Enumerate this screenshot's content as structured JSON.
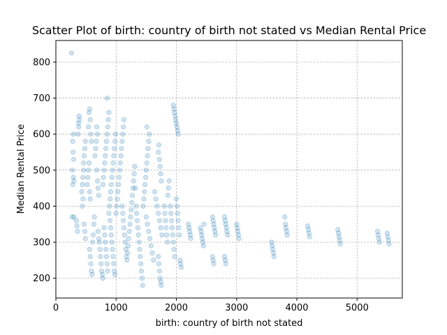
{
  "chart_data": {
    "type": "scatter",
    "title": "Scatter Plot of birth: country of birth not stated vs Median Rental Price",
    "xlabel": "birth: country of birth not stated",
    "ylabel": "Median Rental Price",
    "xlim": [
      0,
      5750
    ],
    "ylim": [
      145,
      860
    ],
    "xticks": [
      0,
      1000,
      2000,
      3000,
      4000,
      5000
    ],
    "yticks": [
      200,
      300,
      400,
      500,
      600,
      700,
      800
    ],
    "grid": true,
    "point_color": "#1f77b4",
    "point_alpha": 0.2,
    "points": [
      [
        260,
        825
      ],
      [
        270,
        370
      ],
      [
        300,
        370
      ],
      [
        290,
        600
      ],
      [
        280,
        580
      ],
      [
        285,
        550
      ],
      [
        295,
        530
      ],
      [
        275,
        500
      ],
      [
        290,
        480
      ],
      [
        300,
        470
      ],
      [
        280,
        460
      ],
      [
        340,
        360
      ],
      [
        350,
        345
      ],
      [
        360,
        330
      ],
      [
        370,
        600
      ],
      [
        380,
        620
      ],
      [
        390,
        640
      ],
      [
        385,
        650
      ],
      [
        375,
        630
      ],
      [
        430,
        440
      ],
      [
        440,
        460
      ],
      [
        450,
        480
      ],
      [
        460,
        520
      ],
      [
        470,
        540
      ],
      [
        480,
        560
      ],
      [
        490,
        580
      ],
      [
        460,
        500
      ],
      [
        450,
        420
      ],
      [
        440,
        400
      ],
      [
        470,
        350
      ],
      [
        480,
        330
      ],
      [
        490,
        310
      ],
      [
        520,
        460
      ],
      [
        530,
        480
      ],
      [
        540,
        500
      ],
      [
        550,
        520
      ],
      [
        560,
        440
      ],
      [
        570,
        420
      ],
      [
        540,
        620
      ],
      [
        550,
        660
      ],
      [
        560,
        670
      ],
      [
        570,
        640
      ],
      [
        580,
        600
      ],
      [
        590,
        580
      ],
      [
        560,
        280
      ],
      [
        570,
        260
      ],
      [
        580,
        240
      ],
      [
        590,
        220
      ],
      [
        600,
        210
      ],
      [
        610,
        300
      ],
      [
        620,
        320
      ],
      [
        630,
        350
      ],
      [
        640,
        370
      ],
      [
        650,
        540
      ],
      [
        660,
        560
      ],
      [
        670,
        580
      ],
      [
        680,
        500
      ],
      [
        690,
        470
      ],
      [
        700,
        450
      ],
      [
        710,
        430
      ],
      [
        680,
        620
      ],
      [
        690,
        600
      ],
      [
        700,
        330
      ],
      [
        710,
        310
      ],
      [
        720,
        300
      ],
      [
        730,
        280
      ],
      [
        740,
        260
      ],
      [
        750,
        240
      ],
      [
        760,
        220
      ],
      [
        770,
        210
      ],
      [
        780,
        200
      ],
      [
        780,
        460
      ],
      [
        790,
        480
      ],
      [
        800,
        500
      ],
      [
        810,
        520
      ],
      [
        820,
        540
      ],
      [
        830,
        560
      ],
      [
        840,
        580
      ],
      [
        850,
        600
      ],
      [
        860,
        620
      ],
      [
        870,
        640
      ],
      [
        880,
        660
      ],
      [
        850,
        700
      ],
      [
        800,
        340
      ],
      [
        810,
        320
      ],
      [
        820,
        300
      ],
      [
        830,
        280
      ],
      [
        840,
        260
      ],
      [
        850,
        240
      ],
      [
        860,
        220
      ],
      [
        880,
        380
      ],
      [
        890,
        400
      ],
      [
        900,
        420
      ],
      [
        910,
        440
      ],
      [
        920,
        460
      ],
      [
        930,
        480
      ],
      [
        940,
        500
      ],
      [
        950,
        520
      ],
      [
        960,
        540
      ],
      [
        970,
        560
      ],
      [
        980,
        580
      ],
      [
        990,
        600
      ],
      [
        900,
        360
      ],
      [
        910,
        340
      ],
      [
        920,
        320
      ],
      [
        930,
        300
      ],
      [
        940,
        280
      ],
      [
        950,
        260
      ],
      [
        960,
        240
      ],
      [
        970,
        220
      ],
      [
        980,
        210
      ],
      [
        1000,
        380
      ],
      [
        1010,
        400
      ],
      [
        1020,
        420
      ],
      [
        1030,
        440
      ],
      [
        1040,
        460
      ],
      [
        1050,
        480
      ],
      [
        1060,
        500
      ],
      [
        1070,
        520
      ],
      [
        1080,
        540
      ],
      [
        1090,
        560
      ],
      [
        1100,
        580
      ],
      [
        1110,
        600
      ],
      [
        1120,
        620
      ],
      [
        1130,
        640
      ],
      [
        1100,
        400
      ],
      [
        1110,
        380
      ],
      [
        1120,
        360
      ],
      [
        1130,
        340
      ],
      [
        1140,
        320
      ],
      [
        1150,
        300
      ],
      [
        1160,
        280
      ],
      [
        1170,
        260
      ],
      [
        1180,
        250
      ],
      [
        1190,
        270
      ],
      [
        1200,
        290
      ],
      [
        1210,
        310
      ],
      [
        1220,
        330
      ],
      [
        1230,
        350
      ],
      [
        1240,
        370
      ],
      [
        1250,
        390
      ],
      [
        1260,
        410
      ],
      [
        1270,
        430
      ],
      [
        1280,
        450
      ],
      [
        1290,
        470
      ],
      [
        1300,
        490
      ],
      [
        1310,
        510
      ],
      [
        1320,
        450
      ],
      [
        1330,
        400
      ],
      [
        1340,
        380
      ],
      [
        1350,
        360
      ],
      [
        1360,
        340
      ],
      [
        1370,
        320
      ],
      [
        1380,
        300
      ],
      [
        1390,
        280
      ],
      [
        1400,
        260
      ],
      [
        1410,
        240
      ],
      [
        1420,
        220
      ],
      [
        1430,
        200
      ],
      [
        1440,
        180
      ],
      [
        1450,
        400
      ],
      [
        1460,
        420
      ],
      [
        1470,
        440
      ],
      [
        1480,
        460
      ],
      [
        1490,
        480
      ],
      [
        1500,
        500
      ],
      [
        1510,
        520
      ],
      [
        1520,
        540
      ],
      [
        1530,
        560
      ],
      [
        1540,
        580
      ],
      [
        1550,
        600
      ],
      [
        1510,
        620
      ],
      [
        1500,
        370
      ],
      [
        1520,
        350
      ],
      [
        1540,
        330
      ],
      [
        1560,
        310
      ],
      [
        1580,
        290
      ],
      [
        1600,
        270
      ],
      [
        1620,
        250
      ],
      [
        1640,
        440
      ],
      [
        1660,
        420
      ],
      [
        1680,
        400
      ],
      [
        1700,
        380
      ],
      [
        1720,
        360
      ],
      [
        1740,
        340
      ],
      [
        1760,
        320
      ],
      [
        1700,
        550
      ],
      [
        1710,
        570
      ],
      [
        1720,
        530
      ],
      [
        1730,
        510
      ],
      [
        1740,
        490
      ],
      [
        1750,
        470
      ],
      [
        1700,
        260
      ],
      [
        1710,
        240
      ],
      [
        1720,
        220
      ],
      [
        1730,
        200
      ],
      [
        1740,
        190
      ],
      [
        1750,
        180
      ],
      [
        1800,
        400
      ],
      [
        1810,
        380
      ],
      [
        1820,
        360
      ],
      [
        1830,
        340
      ],
      [
        1840,
        320
      ],
      [
        1850,
        300
      ],
      [
        1860,
        430
      ],
      [
        1870,
        450
      ],
      [
        1880,
        470
      ],
      [
        1950,
        680
      ],
      [
        1960,
        670
      ],
      [
        1970,
        660
      ],
      [
        1980,
        650
      ],
      [
        1990,
        640
      ],
      [
        2000,
        630
      ],
      [
        2010,
        620
      ],
      [
        2020,
        610
      ],
      [
        2030,
        600
      ],
      [
        1900,
        400
      ],
      [
        1910,
        380
      ],
      [
        1920,
        360
      ],
      [
        1930,
        340
      ],
      [
        1940,
        320
      ],
      [
        1950,
        300
      ],
      [
        1960,
        280
      ],
      [
        1970,
        260
      ],
      [
        2000,
        420
      ],
      [
        2010,
        400
      ],
      [
        2020,
        380
      ],
      [
        2030,
        360
      ],
      [
        2040,
        340
      ],
      [
        2050,
        320
      ],
      [
        2060,
        250
      ],
      [
        2070,
        240
      ],
      [
        2080,
        230
      ],
      [
        2200,
        350
      ],
      [
        2210,
        340
      ],
      [
        2220,
        330
      ],
      [
        2230,
        320
      ],
      [
        2240,
        310
      ],
      [
        2400,
        340
      ],
      [
        2410,
        330
      ],
      [
        2420,
        320
      ],
      [
        2430,
        310
      ],
      [
        2440,
        300
      ],
      [
        2450,
        290
      ],
      [
        2460,
        350
      ],
      [
        2600,
        370
      ],
      [
        2610,
        360
      ],
      [
        2620,
        350
      ],
      [
        2630,
        340
      ],
      [
        2640,
        330
      ],
      [
        2650,
        320
      ],
      [
        2600,
        260
      ],
      [
        2610,
        250
      ],
      [
        2620,
        240
      ],
      [
        2800,
        370
      ],
      [
        2810,
        360
      ],
      [
        2820,
        350
      ],
      [
        2830,
        340
      ],
      [
        2840,
        330
      ],
      [
        2850,
        320
      ],
      [
        2800,
        260
      ],
      [
        2810,
        250
      ],
      [
        2820,
        240
      ],
      [
        3000,
        350
      ],
      [
        3010,
        340
      ],
      [
        3020,
        330
      ],
      [
        3030,
        320
      ],
      [
        3040,
        310
      ],
      [
        3580,
        300
      ],
      [
        3590,
        290
      ],
      [
        3600,
        280
      ],
      [
        3610,
        270
      ],
      [
        3620,
        260
      ],
      [
        3800,
        370
      ],
      [
        3810,
        350
      ],
      [
        3820,
        340
      ],
      [
        3830,
        330
      ],
      [
        3840,
        320
      ],
      [
        4180,
        345
      ],
      [
        4190,
        335
      ],
      [
        4200,
        325
      ],
      [
        4210,
        315
      ],
      [
        4680,
        335
      ],
      [
        4690,
        325
      ],
      [
        4700,
        315
      ],
      [
        4710,
        305
      ],
      [
        4720,
        295
      ],
      [
        5340,
        330
      ],
      [
        5350,
        320
      ],
      [
        5360,
        310
      ],
      [
        5370,
        300
      ],
      [
        5500,
        325
      ],
      [
        5510,
        315
      ],
      [
        5520,
        305
      ],
      [
        5530,
        295
      ]
    ]
  }
}
